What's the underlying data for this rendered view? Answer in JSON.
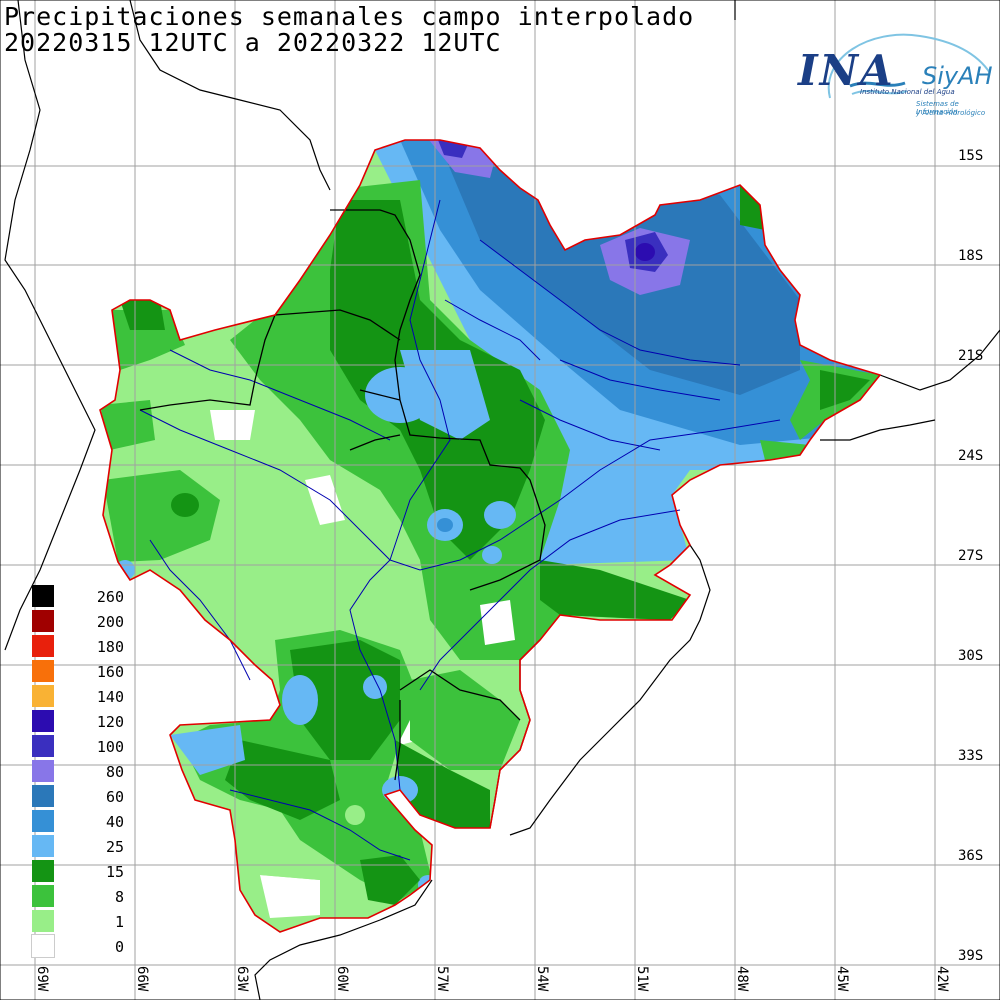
{
  "title": {
    "line1": "Precipitaciones semanales campo interpolado",
    "line2": "20220315 12UTC a 20220322 12UTC"
  },
  "logo": {
    "ina": "INA",
    "siyah": "SiyAH",
    "institute": "Instituto Nacional del Agua",
    "sub1": "Sistemas de Información",
    "sub2": "y Alerta Hidrológico"
  },
  "lat_labels": [
    "15S",
    "18S",
    "21S",
    "24S",
    "27S",
    "30S",
    "33S",
    "36S",
    "39S"
  ],
  "lon_labels": [
    "69W",
    "66W",
    "63W",
    "60W",
    "57W",
    "54W",
    "51W",
    "48W",
    "45W",
    "42W"
  ],
  "legend": [
    {
      "label": "260",
      "color": "#000000"
    },
    {
      "label": "200",
      "color": "#a00000"
    },
    {
      "label": "180",
      "color": "#e8200c"
    },
    {
      "label": "160",
      "color": "#f8700a"
    },
    {
      "label": "140",
      "color": "#f9b234"
    },
    {
      "label": "120",
      "color": "#2c0cb0"
    },
    {
      "label": "100",
      "color": "#3a2fbf"
    },
    {
      "label": "80",
      "color": "#8876e8"
    },
    {
      "label": "60",
      "color": "#2b78b9"
    },
    {
      "label": "40",
      "color": "#3590d6"
    },
    {
      "label": "25",
      "color": "#66b8f4"
    },
    {
      "label": "15",
      "color": "#149414"
    },
    {
      "label": "8",
      "color": "#3cc23c"
    },
    {
      "label": "1",
      "color": "#98ee88"
    },
    {
      "label": "0",
      "color": "#ffffff"
    }
  ],
  "colors": {
    "basin_outline": "#e00000",
    "grid": "#a0a0a0",
    "rivers": "#0000b0",
    "coast": "#000000"
  }
}
